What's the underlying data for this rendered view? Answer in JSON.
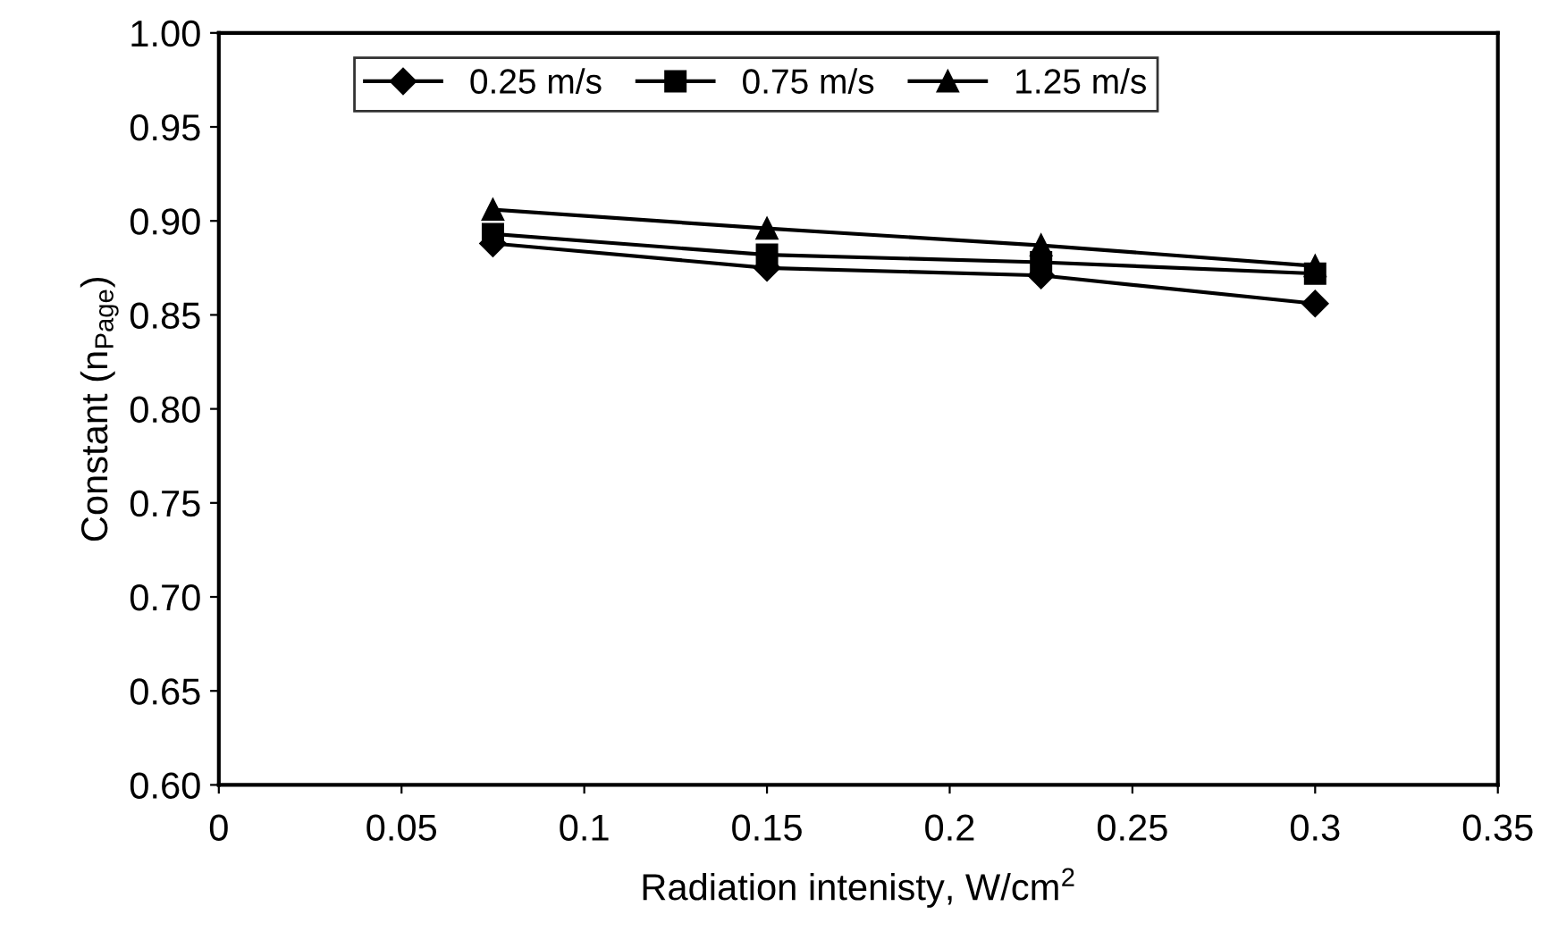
{
  "chart_data": {
    "type": "line",
    "xlabel": "Radiation intenisty, W/cm$^{2}$",
    "ylabel": "Constant (n$_{Page}$)",
    "x": [
      0.075,
      0.15,
      0.225,
      0.3
    ],
    "series": [
      {
        "name": "0.25 m/s",
        "color": "#000000",
        "marker": "diamond",
        "values": [
          0.888,
          0.875,
          0.871,
          0.856
        ]
      },
      {
        "name": "0.75 m/s",
        "color": "#000000",
        "marker": "square",
        "values": [
          0.893,
          0.882,
          0.878,
          0.872
        ]
      },
      {
        "name": "1.25 m/s",
        "color": "#000000",
        "marker": "triangle",
        "values": [
          0.906,
          0.896,
          0.887,
          0.876
        ]
      }
    ],
    "xlim": [
      0,
      0.35
    ],
    "xticks": [
      0,
      0.05,
      0.1,
      0.15,
      0.2,
      0.25,
      0.3,
      0.35
    ],
    "ylim": [
      0.6,
      1.0
    ],
    "yticks": [
      {
        "value": 0.6,
        "label": "0.60"
      },
      {
        "value": 0.65,
        "label": "0.65"
      },
      {
        "value": 0.7,
        "label": "0.70"
      },
      {
        "value": 0.75,
        "label": "0.75"
      },
      {
        "value": 0.8,
        "label": "0.80"
      },
      {
        "value": 0.85,
        "label": "0.85"
      },
      {
        "value": 0.9,
        "label": "0.90"
      },
      {
        "value": 0.95,
        "label": "0.95"
      },
      {
        "value": 1.0,
        "label": "1.00"
      }
    ],
    "grid": false,
    "legend": "top",
    "line_style": "solid"
  }
}
